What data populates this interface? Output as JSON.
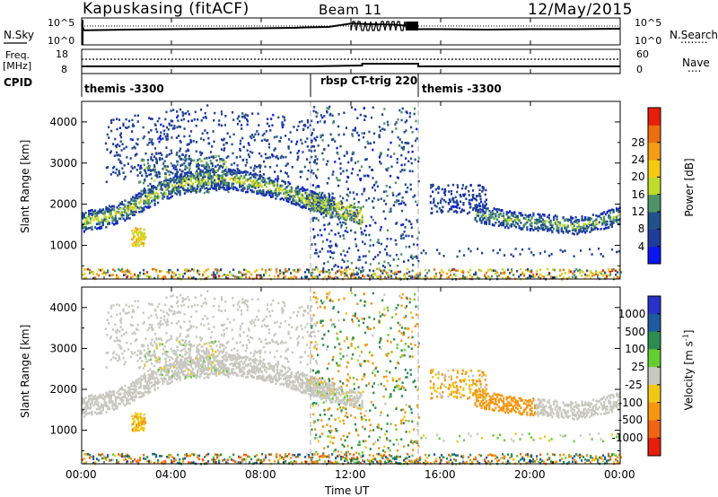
{
  "header": {
    "title": "Kapuskasing (fitACF)",
    "beam": "Beam 11",
    "date": "12/May/2015"
  },
  "top_panels": {
    "nsky": {
      "label": "N.Sky",
      "left_ticks": [
        "10^5",
        "10^0"
      ],
      "right_ticks": [
        "10^5",
        "10^0"
      ],
      "right_label": "N.Search",
      "right_label_dots": "........"
    },
    "freq": {
      "label_line1": "Freq.",
      "label_line2": "[MHz]",
      "left_ticks": [
        "18",
        "8"
      ],
      "right_ticks": [
        "60",
        "0"
      ],
      "right_label": "Nave",
      "right_label_dots": "...."
    },
    "cpid": {
      "label": "CPID",
      "segments": [
        {
          "name": "themis -3300",
          "start_hr": 0.0,
          "end_hr": 10.2
        },
        {
          "name": "rbsp CT-trig 220",
          "start_hr": 10.2,
          "end_hr": 15.0
        },
        {
          "name": "themis -3300",
          "start_hr": 15.0,
          "end_hr": 24.0
        }
      ]
    }
  },
  "axes": {
    "ylabel": "Slant Range [km]",
    "xlabel": "Time UT",
    "x_ticks": [
      "00:00",
      "04:00",
      "08:00",
      "12:00",
      "16:00",
      "20:00",
      "00:00"
    ],
    "y_ticks": [
      "1000",
      "2000",
      "3000",
      "4000"
    ]
  },
  "colorbars": {
    "power": {
      "label": "Power [dB]",
      "ticks": [
        "4",
        "8",
        "12",
        "16",
        "20",
        "24",
        "28"
      ],
      "colors": [
        "#0a16f0",
        "#1e3c9b",
        "#23508a",
        "#4e9468",
        "#bedc28",
        "#f5c814",
        "#f59b14",
        "#eb6e10",
        "#e61e0c"
      ]
    },
    "velocity": {
      "label": "Velocity [m s",
      "label_sup": "-1",
      "label_close": "]",
      "ticks": [
        "1000",
        "500",
        "100",
        "25",
        "-25",
        "-100",
        "-500",
        "-1000"
      ],
      "colors": [
        "#2832c8",
        "#1e5aa0",
        "#2d8c50",
        "#64cd32",
        "#c8c8c0",
        "#f0c814",
        "#f5960f",
        "#f06414",
        "#e61e0c"
      ]
    }
  },
  "chart_data": [
    {
      "type": "line",
      "title": "N.Sky / N.Search",
      "x_unit": "hours UT",
      "series": [
        {
          "name": "N.Sky",
          "x": [
            0,
            0.1,
            2,
            4,
            6,
            8,
            9.5,
            10,
            11,
            12,
            13,
            14,
            14.5,
            15,
            16,
            18,
            20,
            22,
            24
          ],
          "y": [
            0.9,
            0.65,
            0.68,
            0.7,
            0.72,
            0.74,
            0.76,
            0.78,
            0.8,
            0.95,
            0.92,
            0.9,
            0.85,
            0.7,
            0.7,
            0.68,
            0.7,
            0.7,
            0.72
          ]
        }
      ]
    },
    {
      "type": "line",
      "title": "Freq / Nave",
      "x_unit": "hours UT",
      "series": [
        {
          "name": "Freq",
          "x": [
            0,
            10.2,
            12.5,
            15,
            24
          ],
          "y": [
            10,
            10,
            11,
            10,
            10
          ]
        },
        {
          "name": "Nave",
          "x": [
            0,
            24
          ],
          "y": [
            22,
            22
          ]
        }
      ]
    },
    {
      "type": "heatmap",
      "title": "Power",
      "xlabel": "Time UT",
      "ylabel": "Slant Range [km]",
      "xlim": [
        0,
        24
      ],
      "ylim": [
        180,
        4500
      ],
      "clim": [
        0,
        30
      ],
      "features": [
        {
          "name": "main band",
          "x": [
            0,
            1,
            2,
            3,
            4,
            5,
            6,
            7,
            8,
            9,
            10,
            11
          ],
          "y": [
            1600,
            1700,
            1900,
            2200,
            2450,
            2600,
            2650,
            2600,
            2500,
            2350,
            2150,
            1950
          ],
          "power": 14
        },
        {
          "name": "evening band",
          "x": [
            17.5,
            19,
            20,
            21,
            22,
            23,
            24
          ],
          "y": [
            1800,
            1650,
            1600,
            1550,
            1500,
            1600,
            1750
          ],
          "power": 12
        },
        {
          "name": "near range",
          "x": [
            0,
            24
          ],
          "y": [
            250,
            250
          ],
          "power": 20
        }
      ]
    },
    {
      "type": "heatmap",
      "title": "Velocity",
      "xlabel": "Time UT",
      "ylabel": "Slant Range [km]",
      "xlim": [
        0,
        24
      ],
      "ylim": [
        180,
        4500
      ],
      "clim": [
        -1000,
        1000
      ],
      "features": [
        {
          "name": "main band",
          "x": [
            0,
            2,
            4,
            6,
            8,
            10,
            11
          ],
          "y": [
            1600,
            1900,
            2450,
            2650,
            2500,
            2150,
            1950
          ],
          "velocity": 0
        },
        {
          "name": "evening flow",
          "x": [
            17.5,
            19,
            20
          ],
          "y": [
            1900,
            1800,
            1700
          ],
          "velocity": -300
        }
      ]
    }
  ]
}
